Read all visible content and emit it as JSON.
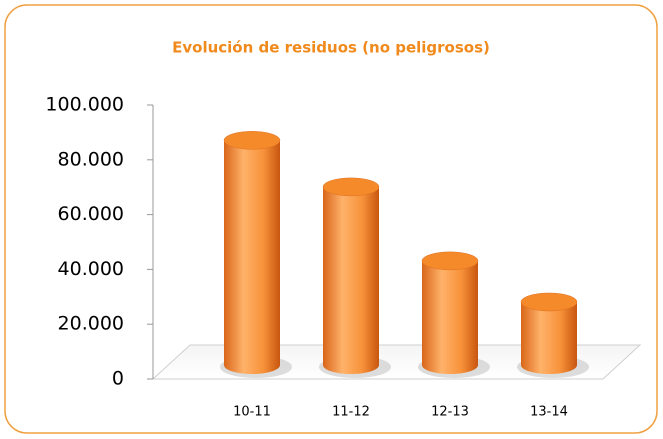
{
  "chart_data": {
    "type": "bar",
    "title": "Evolución de residuos (no peligrosos)",
    "categories": [
      "10-11",
      "11-12",
      "12-13",
      "13-14"
    ],
    "values": [
      82000,
      65000,
      38000,
      23000
    ],
    "color": "#f7923a",
    "ylim": [
      0,
      100000
    ],
    "yticks": [
      0,
      {
        "value": 20000,
        "label": "20.000"
      },
      {
        "value": 40000,
        "label": "40.000"
      },
      {
        "value": 60000,
        "label": "60.000"
      },
      {
        "value": 80000,
        "label": "80.000"
      },
      {
        "value": 100000,
        "label": "100.000"
      }
    ]
  }
}
